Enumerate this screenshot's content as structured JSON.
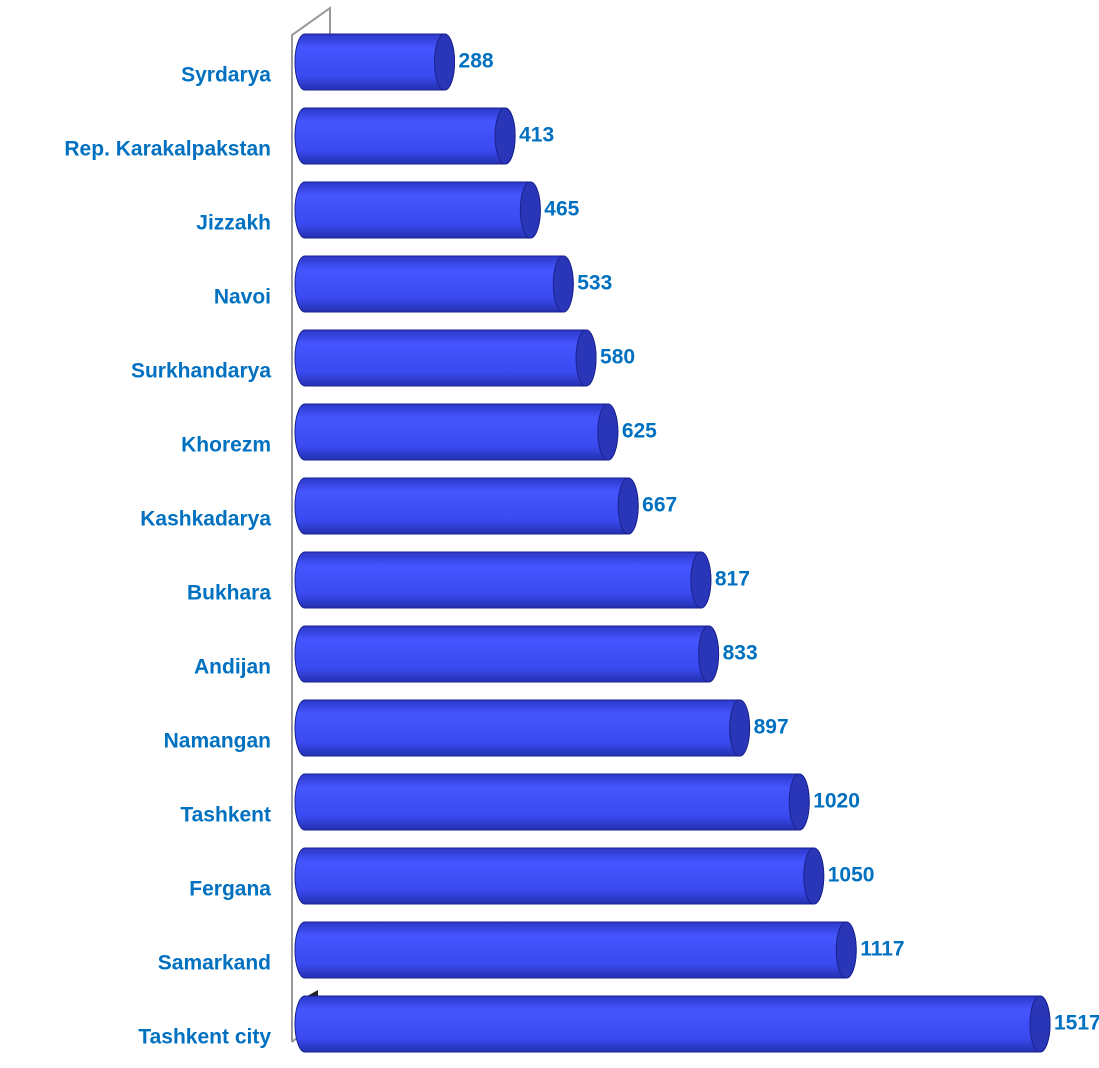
{
  "chart_data": {
    "type": "bar",
    "orientation": "horizontal",
    "categories": [
      "Syrdarya",
      "Rep. Karakalpakstan",
      "Jizzakh",
      "Navoi",
      "Surkhandarya",
      "Khorezm",
      "Kashkadarya",
      "Bukhara",
      "Andijan",
      "Namangan",
      "Tashkent",
      "Fergana",
      "Samarkand",
      "Tashkent city"
    ],
    "values": [
      288,
      413,
      465,
      533,
      580,
      625,
      667,
      817,
      833,
      897,
      1020,
      1050,
      1117,
      1517
    ],
    "color": "#3b4cf0",
    "label_color": "#0070c0",
    "xlim": [
      0,
      1550
    ]
  }
}
